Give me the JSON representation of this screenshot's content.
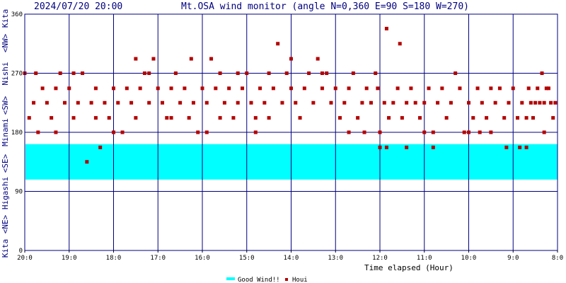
{
  "header": {
    "datetime": "2024/07/20 20:00",
    "title": "Mt.OSA wind monitor (angle N=0,360 E=90 S=180 W=270)"
  },
  "side_labels": [
    "Kita",
    "<NE>",
    "Higashi",
    "<SE>",
    "Minami",
    "<SW>",
    "Nishi",
    "<NW>",
    "Kita"
  ],
  "colors": {
    "frame": "#000080",
    "series": "#b40000",
    "band": "#00ffff",
    "text": "#000080"
  },
  "chart_data": {
    "type": "scatter",
    "title": "Mt.OSA wind monitor (angle N=0,360 E=90 S=180 W=270)",
    "xlabel": "Time elapsed (Hour)",
    "ylabel": "",
    "xlim": [
      12,
      0
    ],
    "ylim": [
      0,
      360
    ],
    "x_tick_labels": [
      "20:0",
      "19:0",
      "18:0",
      "17:0",
      "16:0",
      "15:0",
      "14:0",
      "13:0",
      "12:0",
      "11:0",
      "10:0",
      "9:0",
      "8:0"
    ],
    "y_tick_labels": [
      "0",
      "90",
      "180",
      "270",
      "360"
    ],
    "y_ticks": [
      0,
      90,
      180,
      270,
      360
    ],
    "grid": true,
    "legend_placement": "bottom-center",
    "legend": {
      "band_label": "Good Wind!!",
      "series_label": "Houi"
    },
    "good_wind_band": [
      108,
      162
    ],
    "series": [
      {
        "name": "Houi",
        "points": [
          [
            0.05,
            225
          ],
          [
            0.1,
            202
          ],
          [
            0.15,
            225
          ],
          [
            0.2,
            247
          ],
          [
            0.25,
            247
          ],
          [
            0.3,
            180
          ],
          [
            0.3,
            225
          ],
          [
            0.35,
            270
          ],
          [
            0.4,
            225
          ],
          [
            0.45,
            247
          ],
          [
            0.5,
            225
          ],
          [
            0.55,
            202
          ],
          [
            0.6,
            225
          ],
          [
            0.65,
            247
          ],
          [
            0.7,
            202
          ],
          [
            0.8,
            225
          ],
          [
            0.9,
            202
          ],
          [
            1.0,
            247
          ],
          [
            1.1,
            225
          ],
          [
            1.2,
            202
          ],
          [
            1.3,
            247
          ],
          [
            1.4,
            225
          ],
          [
            1.5,
            247
          ],
          [
            1.6,
            202
          ],
          [
            1.7,
            225
          ],
          [
            1.8,
            247
          ],
          [
            1.9,
            202
          ],
          [
            2.0,
            225
          ],
          [
            2.1,
            180
          ],
          [
            2.2,
            247
          ],
          [
            2.3,
            270
          ],
          [
            2.4,
            225
          ],
          [
            2.5,
            202
          ],
          [
            2.6,
            247
          ],
          [
            2.7,
            225
          ],
          [
            2.8,
            180
          ],
          [
            2.9,
            247
          ],
          [
            3.0,
            225
          ],
          [
            3.1,
            202
          ],
          [
            3.2,
            225
          ],
          [
            3.3,
            247
          ],
          [
            3.4,
            225
          ],
          [
            3.5,
            202
          ],
          [
            3.6,
            247
          ],
          [
            3.7,
            225
          ],
          [
            3.8,
            202
          ],
          [
            3.85,
            157
          ],
          [
            3.9,
            225
          ],
          [
            4.0,
            180
          ],
          [
            4.0,
            157
          ],
          [
            4.05,
            247
          ],
          [
            4.1,
            270
          ],
          [
            4.2,
            225
          ],
          [
            4.3,
            247
          ],
          [
            4.4,
            225
          ],
          [
            4.5,
            202
          ],
          [
            4.6,
            270
          ],
          [
            4.7,
            247
          ],
          [
            4.8,
            225
          ],
          [
            4.9,
            202
          ],
          [
            5.0,
            247
          ],
          [
            5.1,
            225
          ],
          [
            5.2,
            270
          ],
          [
            5.3,
            247
          ],
          [
            5.4,
            292
          ],
          [
            5.5,
            225
          ],
          [
            5.6,
            270
          ],
          [
            5.7,
            247
          ],
          [
            5.8,
            202
          ],
          [
            5.9,
            225
          ],
          [
            6.0,
            247
          ],
          [
            6.1,
            270
          ],
          [
            6.2,
            225
          ],
          [
            6.3,
            315
          ],
          [
            6.4,
            247
          ],
          [
            6.5,
            270
          ],
          [
            6.6,
            225
          ],
          [
            6.7,
            247
          ],
          [
            6.8,
            202
          ],
          [
            6.9,
            225
          ],
          [
            7.0,
            270
          ],
          [
            7.1,
            247
          ],
          [
            7.2,
            225
          ],
          [
            7.3,
            202
          ],
          [
            7.4,
            247
          ],
          [
            7.5,
            225
          ],
          [
            7.6,
            270
          ],
          [
            7.7,
            247
          ],
          [
            7.8,
            292
          ],
          [
            7.9,
            225
          ],
          [
            8.0,
            247
          ],
          [
            8.1,
            180
          ],
          [
            8.2,
            225
          ],
          [
            8.3,
            202
          ],
          [
            8.4,
            247
          ],
          [
            8.5,
            225
          ],
          [
            8.6,
            270
          ],
          [
            8.7,
            247
          ],
          [
            8.8,
            202
          ],
          [
            8.9,
            225
          ],
          [
            9.0,
            247
          ],
          [
            9.1,
            292
          ],
          [
            9.2,
            225
          ],
          [
            9.3,
            270
          ],
          [
            9.4,
            247
          ],
          [
            9.5,
            202
          ],
          [
            9.6,
            225
          ],
          [
            9.7,
            247
          ],
          [
            9.8,
            180
          ],
          [
            9.9,
            225
          ],
          [
            10.0,
            247
          ],
          [
            10.1,
            202
          ],
          [
            10.2,
            225
          ],
          [
            10.3,
            157
          ],
          [
            10.4,
            247
          ],
          [
            10.5,
            225
          ],
          [
            10.6,
            135
          ],
          [
            10.7,
            270
          ],
          [
            10.8,
            225
          ],
          [
            10.9,
            202
          ],
          [
            11.0,
            247
          ],
          [
            11.1,
            225
          ],
          [
            11.2,
            270
          ],
          [
            11.3,
            247
          ],
          [
            11.4,
            202
          ],
          [
            11.5,
            225
          ],
          [
            11.6,
            247
          ],
          [
            11.7,
            180
          ],
          [
            11.8,
            225
          ],
          [
            11.9,
            202
          ],
          [
            12.0,
            270
          ],
          [
            0.7,
            157
          ],
          [
            0.85,
            157
          ],
          [
            1.15,
            157
          ],
          [
            1.5,
            180
          ],
          [
            1.75,
            180
          ],
          [
            2.0,
            180
          ],
          [
            2.8,
            157
          ],
          [
            3.0,
            180
          ],
          [
            3.4,
            157
          ],
          [
            3.55,
            315
          ],
          [
            3.85,
            338
          ],
          [
            4.35,
            180
          ],
          [
            4.7,
            180
          ],
          [
            5.3,
            270
          ],
          [
            6.0,
            292
          ],
          [
            6.5,
            202
          ],
          [
            6.8,
            180
          ],
          [
            7.2,
            270
          ],
          [
            7.6,
            202
          ],
          [
            7.9,
            180
          ],
          [
            8.25,
            292
          ],
          [
            8.7,
            202
          ],
          [
            9.2,
            270
          ],
          [
            9.5,
            292
          ],
          [
            10.0,
            180
          ],
          [
            10.4,
            202
          ],
          [
            10.9,
            270
          ],
          [
            11.3,
            180
          ],
          [
            11.75,
            270
          ]
        ]
      }
    ]
  }
}
